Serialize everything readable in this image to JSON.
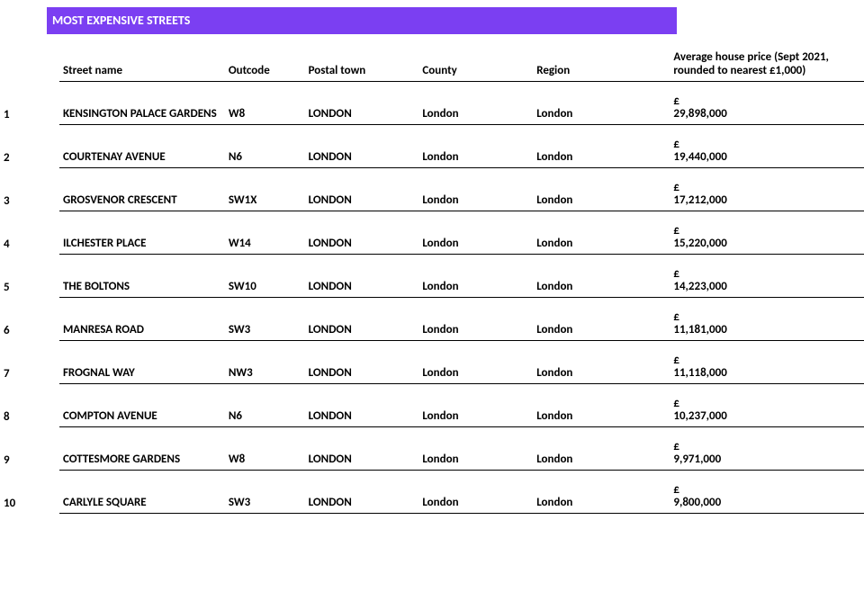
{
  "title": {
    "text": "MOST EXPENSIVE STREETS",
    "bg_color": "#7b3ff2",
    "text_color": "#ffffff"
  },
  "columns": {
    "rank": "",
    "street": "Street name",
    "outcode": "Outcode",
    "postal": "Postal town",
    "county": "County",
    "region": "Region",
    "price": "Average house price (Sept 2021, rounded to nearest £1,000)"
  },
  "currency_symbol": "£",
  "rows": [
    {
      "rank": "1",
      "street": "KENSINGTON PALACE GARDENS",
      "outcode": "W8",
      "postal": "LONDON",
      "county": "London",
      "region": "London",
      "price": "29,898,000"
    },
    {
      "rank": "2",
      "street": "COURTENAY AVENUE",
      "outcode": "N6",
      "postal": "LONDON",
      "county": "London",
      "region": "London",
      "price": "19,440,000"
    },
    {
      "rank": "3",
      "street": "GROSVENOR CRESCENT",
      "outcode": "SW1X",
      "postal": "LONDON",
      "county": "London",
      "region": "London",
      "price": "17,212,000"
    },
    {
      "rank": "4",
      "street": "ILCHESTER PLACE",
      "outcode": "W14",
      "postal": "LONDON",
      "county": "London",
      "region": "London",
      "price": "15,220,000"
    },
    {
      "rank": "5",
      "street": "THE BOLTONS",
      "outcode": "SW10",
      "postal": "LONDON",
      "county": "London",
      "region": "London",
      "price": "14,223,000"
    },
    {
      "rank": "6",
      "street": "MANRESA ROAD",
      "outcode": "SW3",
      "postal": "LONDON",
      "county": "London",
      "region": "London",
      "price": "11,181,000"
    },
    {
      "rank": "7",
      "street": "FROGNAL WAY",
      "outcode": "NW3",
      "postal": "LONDON",
      "county": "London",
      "region": "London",
      "price": "11,118,000"
    },
    {
      "rank": "8",
      "street": "COMPTON AVENUE",
      "outcode": "N6",
      "postal": "LONDON",
      "county": "London",
      "region": "London",
      "price": "10,237,000"
    },
    {
      "rank": "9",
      "street": "COTTESMORE GARDENS",
      "outcode": "W8",
      "postal": "LONDON",
      "county": "London",
      "region": "London",
      "price": "9,971,000"
    },
    {
      "rank": "10",
      "street": "CARLYLE SQUARE",
      "outcode": "SW3",
      "postal": "LONDON",
      "county": "London",
      "region": "London",
      "price": "9,800,000"
    }
  ]
}
